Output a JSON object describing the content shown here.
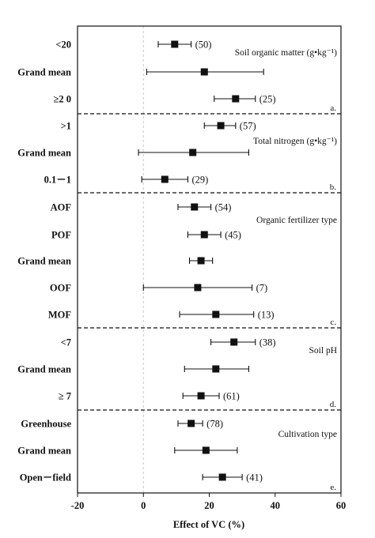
{
  "chart_data": {
    "type": "forest",
    "xlabel": "Effect of VC (%)",
    "xlim": [
      -20,
      60
    ],
    "xticks": [
      "-20",
      "0",
      "20",
      "40",
      "60"
    ],
    "xtick_values": [
      -20,
      0,
      20,
      40,
      60
    ],
    "reference_line": 0,
    "panels": [
      {
        "name": "Soil organic matter (g•kg⁻¹)",
        "letter": "a.",
        "rows": [
          {
            "label": "<20",
            "mean": 9.5,
            "low": 4.5,
            "high": 14.5,
            "count": "(50)"
          },
          {
            "label": "Grand mean",
            "mean": 18.5,
            "low": 1,
            "high": 36.5,
            "count": ""
          },
          {
            "label": "≥2 0",
            "mean": 28,
            "low": 21.5,
            "high": 34,
            "count": "(25)"
          }
        ]
      },
      {
        "name": "Total nitrogen (g•kg⁻¹)",
        "letter": "b.",
        "rows": [
          {
            "label": ">1",
            "mean": 23.5,
            "low": 18.5,
            "high": 28,
            "count": "(57)"
          },
          {
            "label": "Grand mean",
            "mean": 15,
            "low": -1.5,
            "high": 32,
            "count": ""
          },
          {
            "label": "0.1－1",
            "mean": 6.5,
            "low": -0.5,
            "high": 13.5,
            "count": "(29)"
          }
        ]
      },
      {
        "name": "Organic fertilizer type",
        "letter": "",
        "rows": [
          {
            "label": "AOF",
            "mean": 15.5,
            "low": 10.5,
            "high": 20.5,
            "count": "(54)"
          },
          {
            "label": "POF",
            "mean": 18.5,
            "low": 13.5,
            "high": 23.5,
            "count": "(45)"
          },
          {
            "label": "Grand mean",
            "mean": 17.5,
            "low": 14,
            "high": 21,
            "count": ""
          },
          {
            "label": "OOF",
            "mean": 16.5,
            "low": 0,
            "high": 33,
            "count": "(7)"
          },
          {
            "label": "MOF",
            "mean": 22,
            "low": 11,
            "high": 33.5,
            "count": "(13)"
          }
        ]
      },
      {
        "name": "Soil pH",
        "letter": "d.",
        "rows": [
          {
            "label": "<7",
            "mean": 27.5,
            "low": 20.5,
            "high": 34,
            "count": "(38)"
          },
          {
            "label": "Grand mean",
            "mean": 22,
            "low": 12.5,
            "high": 32,
            "count": ""
          },
          {
            "label": "≥ 7",
            "mean": 17.5,
            "low": 12,
            "high": 23,
            "count": "(61)"
          }
        ]
      },
      {
        "name": "Cultivation type",
        "letter": "e.",
        "rows": [
          {
            "label": "Greenhouse",
            "mean": 14.5,
            "low": 10.5,
            "high": 18,
            "count": "(78)"
          },
          {
            "label": "Grand mean",
            "mean": 19,
            "low": 9.5,
            "high": 28.5,
            "count": ""
          },
          {
            "label": "Open－field",
            "mean": 24,
            "low": 18,
            "high": 30,
            "count": "(41)"
          }
        ]
      }
    ],
    "extra_text": {
      "c_letter": "c."
    }
  }
}
